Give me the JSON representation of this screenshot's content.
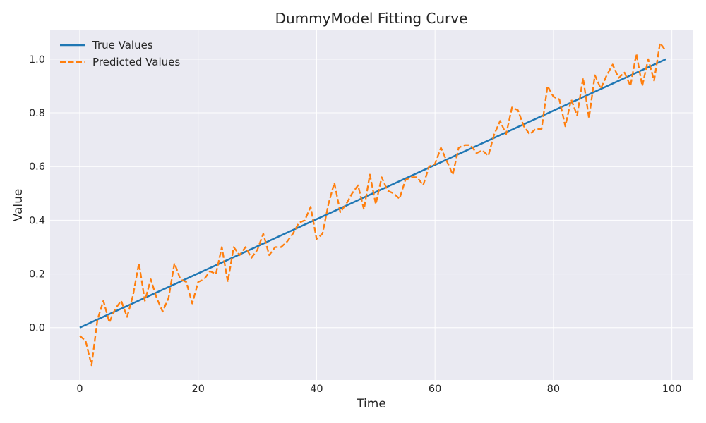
{
  "chart_data": {
    "type": "line",
    "title": "DummyModel Fitting Curve",
    "xlabel": "Time",
    "ylabel": "Value",
    "xlim": [
      -5,
      103.5
    ],
    "ylim": [
      -0.195,
      1.11
    ],
    "xticks": [
      0,
      20,
      40,
      60,
      80,
      100
    ],
    "yticks": [
      0.0,
      0.2,
      0.4,
      0.6,
      0.8,
      1.0
    ],
    "xtick_labels": [
      "0",
      "20",
      "40",
      "60",
      "80",
      "100"
    ],
    "ytick_labels": [
      "0.0",
      "0.2",
      "0.4",
      "0.6",
      "0.8",
      "1.0"
    ],
    "grid": true,
    "legend_position": "top-left",
    "background": "#eaeaf2",
    "series": [
      {
        "name": "True Values",
        "style": "solid",
        "color": "#1f77b4",
        "x": [
          0,
          99
        ],
        "y": [
          0.0,
          1.0
        ]
      },
      {
        "name": "Predicted Values",
        "style": "dashed",
        "color": "#ff7f0e",
        "x": [
          0,
          1,
          2,
          3,
          4,
          5,
          6,
          7,
          8,
          9,
          10,
          11,
          12,
          13,
          14,
          15,
          16,
          17,
          18,
          19,
          20,
          21,
          22,
          23,
          24,
          25,
          26,
          27,
          28,
          29,
          30,
          31,
          32,
          33,
          34,
          35,
          36,
          37,
          38,
          39,
          40,
          41,
          42,
          43,
          44,
          45,
          46,
          47,
          48,
          49,
          50,
          51,
          52,
          53,
          54,
          55,
          56,
          57,
          58,
          59,
          60,
          61,
          62,
          63,
          64,
          65,
          66,
          67,
          68,
          69,
          70,
          71,
          72,
          73,
          74,
          75,
          76,
          77,
          78,
          79,
          80,
          81,
          82,
          83,
          84,
          85,
          86,
          87,
          88,
          89,
          90,
          91,
          92,
          93,
          94,
          95,
          96,
          97,
          98,
          99
        ],
        "y": [
          -0.03,
          -0.05,
          -0.14,
          0.03,
          0.1,
          0.02,
          0.07,
          0.1,
          0.04,
          0.12,
          0.24,
          0.1,
          0.18,
          0.11,
          0.06,
          0.11,
          0.24,
          0.18,
          0.17,
          0.09,
          0.17,
          0.18,
          0.21,
          0.2,
          0.3,
          0.17,
          0.3,
          0.27,
          0.3,
          0.26,
          0.29,
          0.35,
          0.27,
          0.3,
          0.3,
          0.32,
          0.35,
          0.39,
          0.4,
          0.45,
          0.33,
          0.35,
          0.46,
          0.54,
          0.43,
          0.46,
          0.5,
          0.53,
          0.44,
          0.57,
          0.46,
          0.56,
          0.51,
          0.5,
          0.48,
          0.55,
          0.56,
          0.56,
          0.53,
          0.6,
          0.61,
          0.67,
          0.62,
          0.57,
          0.67,
          0.68,
          0.68,
          0.65,
          0.66,
          0.64,
          0.72,
          0.77,
          0.72,
          0.82,
          0.81,
          0.75,
          0.72,
          0.74,
          0.74,
          0.9,
          0.86,
          0.85,
          0.75,
          0.85,
          0.79,
          0.93,
          0.78,
          0.94,
          0.89,
          0.94,
          0.98,
          0.93,
          0.95,
          0.9,
          1.02,
          0.9,
          1.0,
          0.92,
          1.06,
          1.03
        ]
      }
    ]
  }
}
